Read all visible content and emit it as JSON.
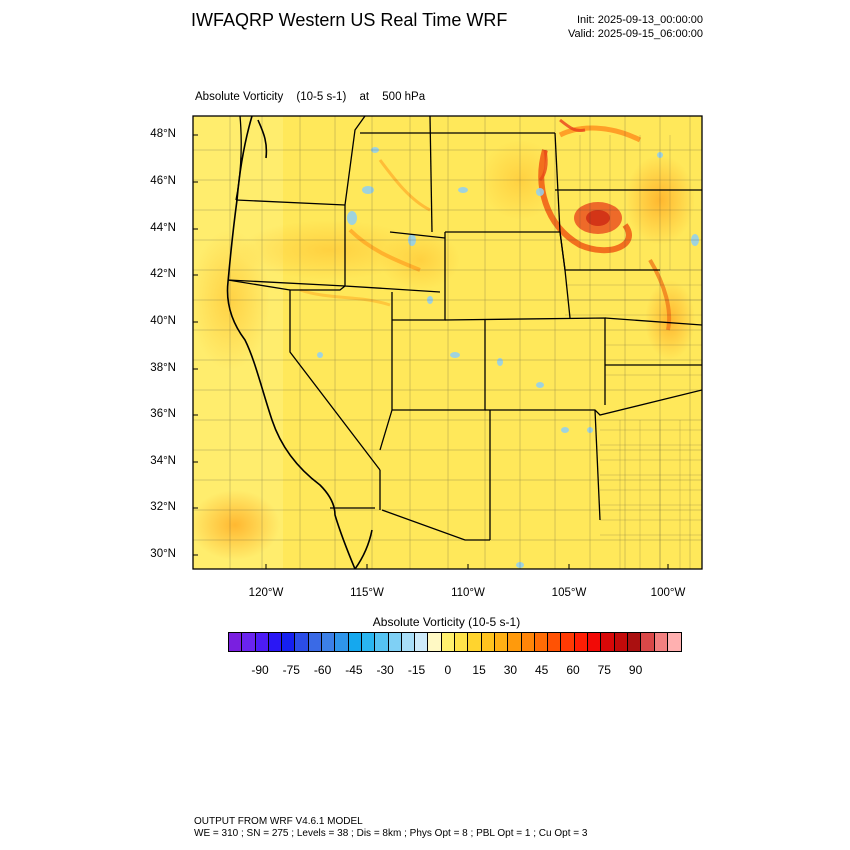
{
  "header": {
    "title": "IWFAQRP Western US Real Time WRF",
    "init": "Init: 2025-09-13_00:00:00",
    "valid": "Valid: 2025-09-15_06:00:00"
  },
  "field": {
    "name": "Absolute Vorticity",
    "units": "(10-5 s-1)",
    "level_prefix": "at",
    "level": "500 hPa"
  },
  "axes": {
    "lat_labels": [
      "48°N",
      "46°N",
      "44°N",
      "42°N",
      "40°N",
      "38°N",
      "36°N",
      "34°N",
      "32°N",
      "30°N"
    ],
    "lon_labels": [
      "120°W",
      "115°W",
      "110°W",
      "105°W",
      "100°W"
    ]
  },
  "colorbar": {
    "title": "Absolute Vorticity  (10-5 s-1)",
    "labels": [
      "-90",
      "-75",
      "-60",
      "-45",
      "-30",
      "-15",
      "0",
      "15",
      "30",
      "45",
      "60",
      "75",
      "90"
    ],
    "colors": [
      "#7a1fe0",
      "#6a24f0",
      "#4d1cf5",
      "#2a17f5",
      "#1520f0",
      "#2b4de8",
      "#3a6ae6",
      "#3c80e8",
      "#2f95ea",
      "#15a8ee",
      "#2ab6f0",
      "#55c3f2",
      "#7fd0f5",
      "#a8def8",
      "#cdeafa",
      "#fff9c4",
      "#fff06e",
      "#ffe34a",
      "#ffd42e",
      "#ffc31e",
      "#ffb014",
      "#ff9a0c",
      "#ff8508",
      "#ff6c05",
      "#ff5204",
      "#ff3a04",
      "#ff1e04",
      "#f20a06",
      "#d80808",
      "#c30a0a",
      "#aa1010",
      "#d94848",
      "#f28080",
      "#ffb0b0"
    ]
  },
  "footer": {
    "line1": "OUTPUT FROM WRF V4.6.1 MODEL",
    "line2": "WE = 310 ; SN = 275 ; Levels = 38 ; Dis = 8km ; Phys Opt = 8 ; PBL Opt = 1 ; Cu Opt = 3"
  },
  "colors": {
    "background_field": "#ffe85a",
    "positive_anomaly": "#ff8c1a",
    "strong_positive": "#e8301a",
    "negative_anomaly": "#8fd0f5"
  }
}
